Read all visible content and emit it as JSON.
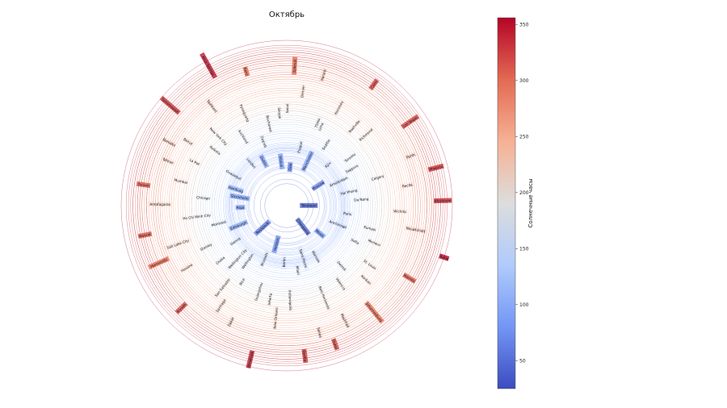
{
  "chart_data": {
    "type": "polar-bubble",
    "title": "Октябрь",
    "colorbar": {
      "label": "Солнечные часы",
      "range": [
        25,
        356
      ],
      "ticks": [
        50,
        100,
        150,
        200,
        250,
        300,
        350
      ],
      "colormap": "coolwarm"
    },
    "colormap_stops": [
      "#3b4cc0",
      "#7396f5",
      "#b0cbfc",
      "#dddddd",
      "#f6b194",
      "#e36a53",
      "#b40426"
    ],
    "cities": [
      {
        "name": "Tórshavn",
        "value": 38
      },
      {
        "name": "Reykjavik",
        "value": 62
      },
      {
        "name": "Oslo",
        "value": 75
      },
      {
        "name": "Chongqing",
        "value": 48
      },
      {
        "name": "Stockholm",
        "value": 95
      },
      {
        "name": "Moscow",
        "value": 72
      },
      {
        "name": "Helsinki",
        "value": 78
      },
      {
        "name": "Dublin",
        "value": 100
      },
      {
        "name": "Anchorage",
        "value": 110
      },
      {
        "name": "Edinburgh",
        "value": 105
      },
      {
        "name": "Manchester",
        "value": 98
      },
      {
        "name": "Saint-Pierre",
        "value": 112
      },
      {
        "name": "Guayaquil",
        "value": 125
      },
      {
        "name": "Hai Phong",
        "value": 130
      },
      {
        "name": "Wellington",
        "value": 140
      },
      {
        "name": "Vilnius",
        "value": 88
      },
      {
        "name": "Minsk",
        "value": 85
      },
      {
        "name": "Riga",
        "value": 92
      },
      {
        "name": "Kyiv",
        "value": 118
      },
      {
        "name": "Berlin",
        "value": 115
      },
      {
        "name": "London",
        "value": 112
      },
      {
        "name": "Paris",
        "value": 125
      },
      {
        "name": "Vienna",
        "value": 128
      },
      {
        "name": "Prague",
        "value": 122
      },
      {
        "name": "Warsaw",
        "value": 120
      },
      {
        "name": "Hamburg",
        "value": 108
      },
      {
        "name": "Amsterdam",
        "value": 116
      },
      {
        "name": "Brussels",
        "value": 118
      },
      {
        "name": "Zagreb",
        "value": 140
      },
      {
        "name": "Sofia",
        "value": 160
      },
      {
        "name": "Montreal",
        "value": 145
      },
      {
        "name": "Seattle",
        "value": 150
      },
      {
        "name": "Milan",
        "value": 135
      },
      {
        "name": "Kolkata",
        "value": 190
      },
      {
        "name": "Da Nang",
        "value": 155
      },
      {
        "name": "Wellington City",
        "value": 150
      },
      {
        "name": "Seoul",
        "value": 205
      },
      {
        "name": "Detroit",
        "value": 170
      },
      {
        "name": "Chicago",
        "value": 175
      },
      {
        "name": "Toronto",
        "value": 165
      },
      {
        "name": "Jakarta",
        "value": 200
      },
      {
        "name": "Auckland",
        "value": 170
      },
      {
        "name": "Kumasi",
        "value": 180
      },
      {
        "name": "Stanley",
        "value": 190
      },
      {
        "name": "Tbilisi",
        "value": 185
      },
      {
        "name": "Belo Horizonte",
        "value": 210
      },
      {
        "name": "La Paz",
        "value": 215
      },
      {
        "name": "Calgary",
        "value": 200
      },
      {
        "name": "Nice",
        "value": 185
      },
      {
        "name": "Bucharest",
        "value": 175
      },
      {
        "name": "St. Louis",
        "value": 215
      },
      {
        "name": "Ho Chi Minh City",
        "value": 190
      },
      {
        "name": "Nashville",
        "value": 220
      },
      {
        "name": "Indianapolis",
        "value": 200
      },
      {
        "name": "New York City",
        "value": 205
      },
      {
        "name": "Wichita",
        "value": 240
      },
      {
        "name": "Osaka",
        "value": 180
      },
      {
        "name": "Denver",
        "value": 245
      },
      {
        "name": "Valencia",
        "value": 200
      },
      {
        "name": "Mumbai",
        "value": 230
      },
      {
        "name": "Sapporo",
        "value": 155
      },
      {
        "name": "Guangzhou",
        "value": 190
      },
      {
        "name": "Pyongyang",
        "value": 215
      },
      {
        "name": "Monaco",
        "value": 200
      },
      {
        "name": "Salt Lake City",
        "value": 245
      },
      {
        "name": "Honolulu",
        "value": 235
      },
      {
        "name": "Sanaa",
        "value": 280
      },
      {
        "name": "Beirut",
        "value": 250
      },
      {
        "name": "Recife",
        "value": 260
      },
      {
        "name": "San Salvador",
        "value": 220
      },
      {
        "name": "Skopje",
        "value": 195
      },
      {
        "name": "Kankan",
        "value": 230
      },
      {
        "name": "Antofagasta",
        "value": 270
      },
      {
        "name": "Richmond",
        "value": 225
      },
      {
        "name": "New Orleans",
        "value": 240
      },
      {
        "name": "Tashkent",
        "value": 265
      },
      {
        "name": "Nouakchott",
        "value": 280
      },
      {
        "name": "Havana",
        "value": 250
      },
      {
        "name": "Harare",
        "value": 290
      },
      {
        "name": "Mashhad",
        "value": 275
      },
      {
        "name": "Tehran",
        "value": 270
      },
      {
        "name": "Perth",
        "value": 285
      },
      {
        "name": "Dakar",
        "value": 275
      },
      {
        "name": "Kano",
        "value": 300
      },
      {
        "name": "Niamey",
        "value": 305
      },
      {
        "name": "Muscat",
        "value": 310
      },
      {
        "name": "Cairo",
        "value": 320
      },
      {
        "name": "Quetta",
        "value": 325
      },
      {
        "name": "Tamanrasset",
        "value": 330
      },
      {
        "name": "Khartoum",
        "value": 335
      },
      {
        "name": "Riyadh",
        "value": 315
      },
      {
        "name": "Djibouti",
        "value": 300
      },
      {
        "name": "Johannesburg",
        "value": 295
      },
      {
        "name": "Tucson",
        "value": 310
      },
      {
        "name": "Las Vegas",
        "value": 320
      },
      {
        "name": "Windhoek",
        "value": 340
      },
      {
        "name": "Alice Springs",
        "value": 345
      },
      {
        "name": "Yuma",
        "value": 356
      },
      {
        "name": "Hermosillo",
        "value": 300
      },
      {
        "name": "Lima",
        "value": 180
      },
      {
        "name": "Dubai",
        "value": 315
      },
      {
        "name": "Bamako",
        "value": 285
      },
      {
        "name": "Phoenix",
        "value": 330
      },
      {
        "name": "Santiago",
        "value": 255
      }
    ]
  }
}
